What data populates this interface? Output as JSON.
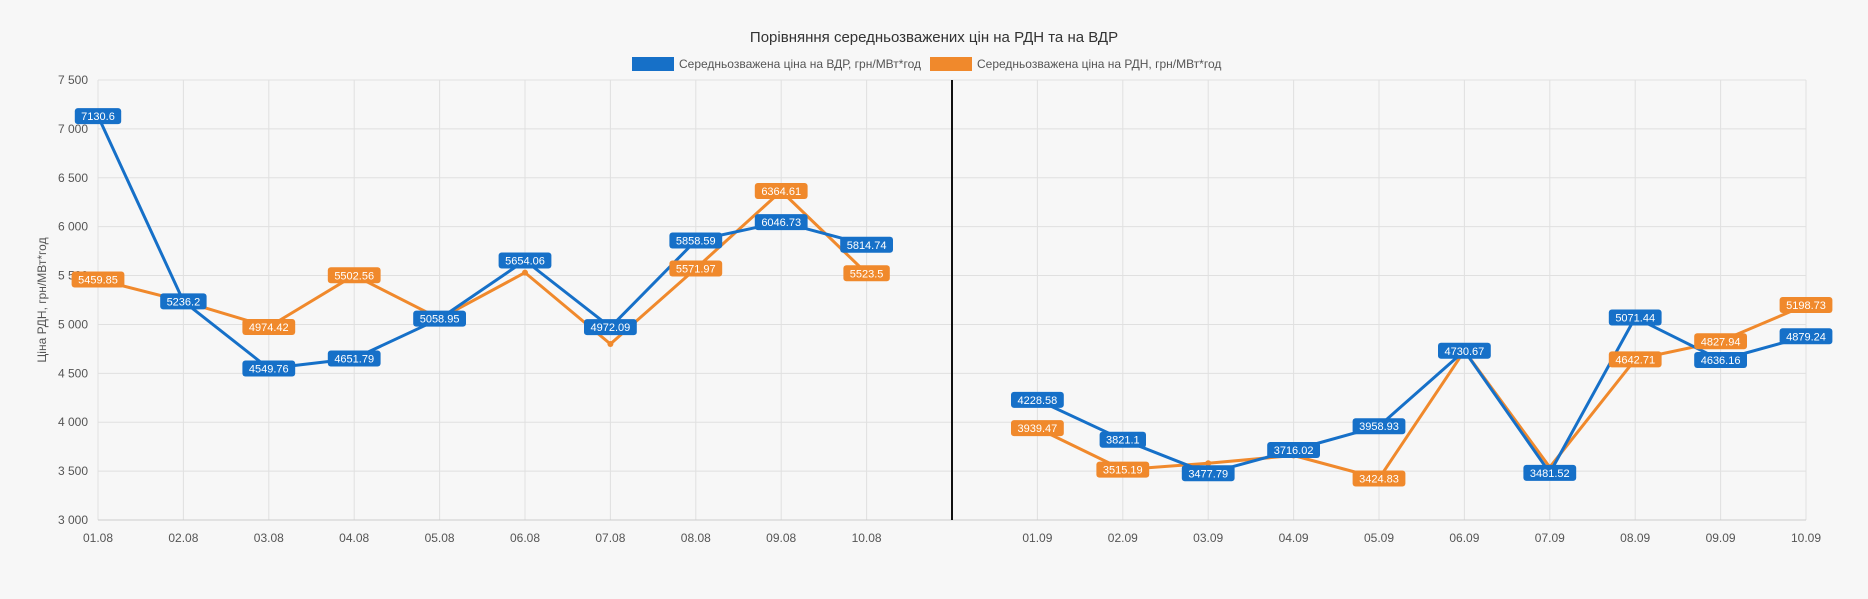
{
  "chart_data": {
    "type": "line",
    "title": "Порівняння середньозважених цін на РДН та на ВДР",
    "ylabel": "Ціна РДН, грн/МВт*год",
    "xlabel": "",
    "ylim": [
      3000,
      7500
    ],
    "y_ticks": [
      "3 000",
      "3 500",
      "4 000",
      "4 500",
      "5 000",
      "5 500",
      "6 000",
      "6 500",
      "7 000",
      "7 500"
    ],
    "y_tick_values": [
      3000,
      3500,
      4000,
      4500,
      5000,
      5500,
      6000,
      6500,
      7000,
      7500
    ],
    "categories": [
      "01.08",
      "02.08",
      "03.08",
      "04.08",
      "05.08",
      "06.08",
      "07.08",
      "08.08",
      "09.08",
      "10.08",
      "",
      "01.09",
      "02.09",
      "03.09",
      "04.09",
      "05.09",
      "06.09",
      "07.09",
      "08.09",
      "09.09",
      "10.09"
    ],
    "divider_after_index": 9,
    "grid": true,
    "legend_position": "top",
    "series": [
      {
        "name": "Середньозважена ціна на ВДР, грн/МВт*год",
        "color": "#1670c8",
        "values": [
          7130.6,
          5236.2,
          4549.76,
          4651.79,
          5058.95,
          5654.06,
          4972.09,
          5858.59,
          6046.73,
          5814.74,
          null,
          4228.58,
          3821.1,
          3477.79,
          3716.02,
          3958.93,
          4730.67,
          3481.52,
          5071.44,
          4636.16,
          4879.24
        ],
        "labels": [
          "7130.6",
          "5236.2",
          "4549.76",
          "4651.79",
          "5058.95",
          "5654.06",
          "4972.09",
          "5858.59",
          "6046.73",
          "5814.74",
          "",
          "4228.58",
          "3821.1",
          "3477.79",
          "3716.02",
          "3958.93",
          "4730.67",
          "3481.52",
          "5071.44",
          "4636.16",
          "4879.24"
        ]
      },
      {
        "name": "Середньозважена ціна на РДН, грн/МВт*год",
        "color": "#f0892c",
        "values": [
          5459.85,
          5236.2,
          4974.42,
          5502.56,
          5058.95,
          5530,
          4800,
          5571.97,
          6364.61,
          5523.5,
          null,
          3939.47,
          3515.19,
          3580,
          3660,
          3424.83,
          4730.67,
          3540,
          4642.71,
          4827.94,
          5198.73
        ],
        "labels": [
          "5459.85",
          "",
          "4974.42",
          "5502.56",
          "",
          "",
          "",
          "5571.97",
          "6364.61",
          "5523.5",
          "",
          "3939.47",
          "3515.19",
          "",
          "",
          "3424.83",
          "",
          "",
          "4642.71",
          "4827.94",
          "5198.73"
        ]
      }
    ]
  }
}
